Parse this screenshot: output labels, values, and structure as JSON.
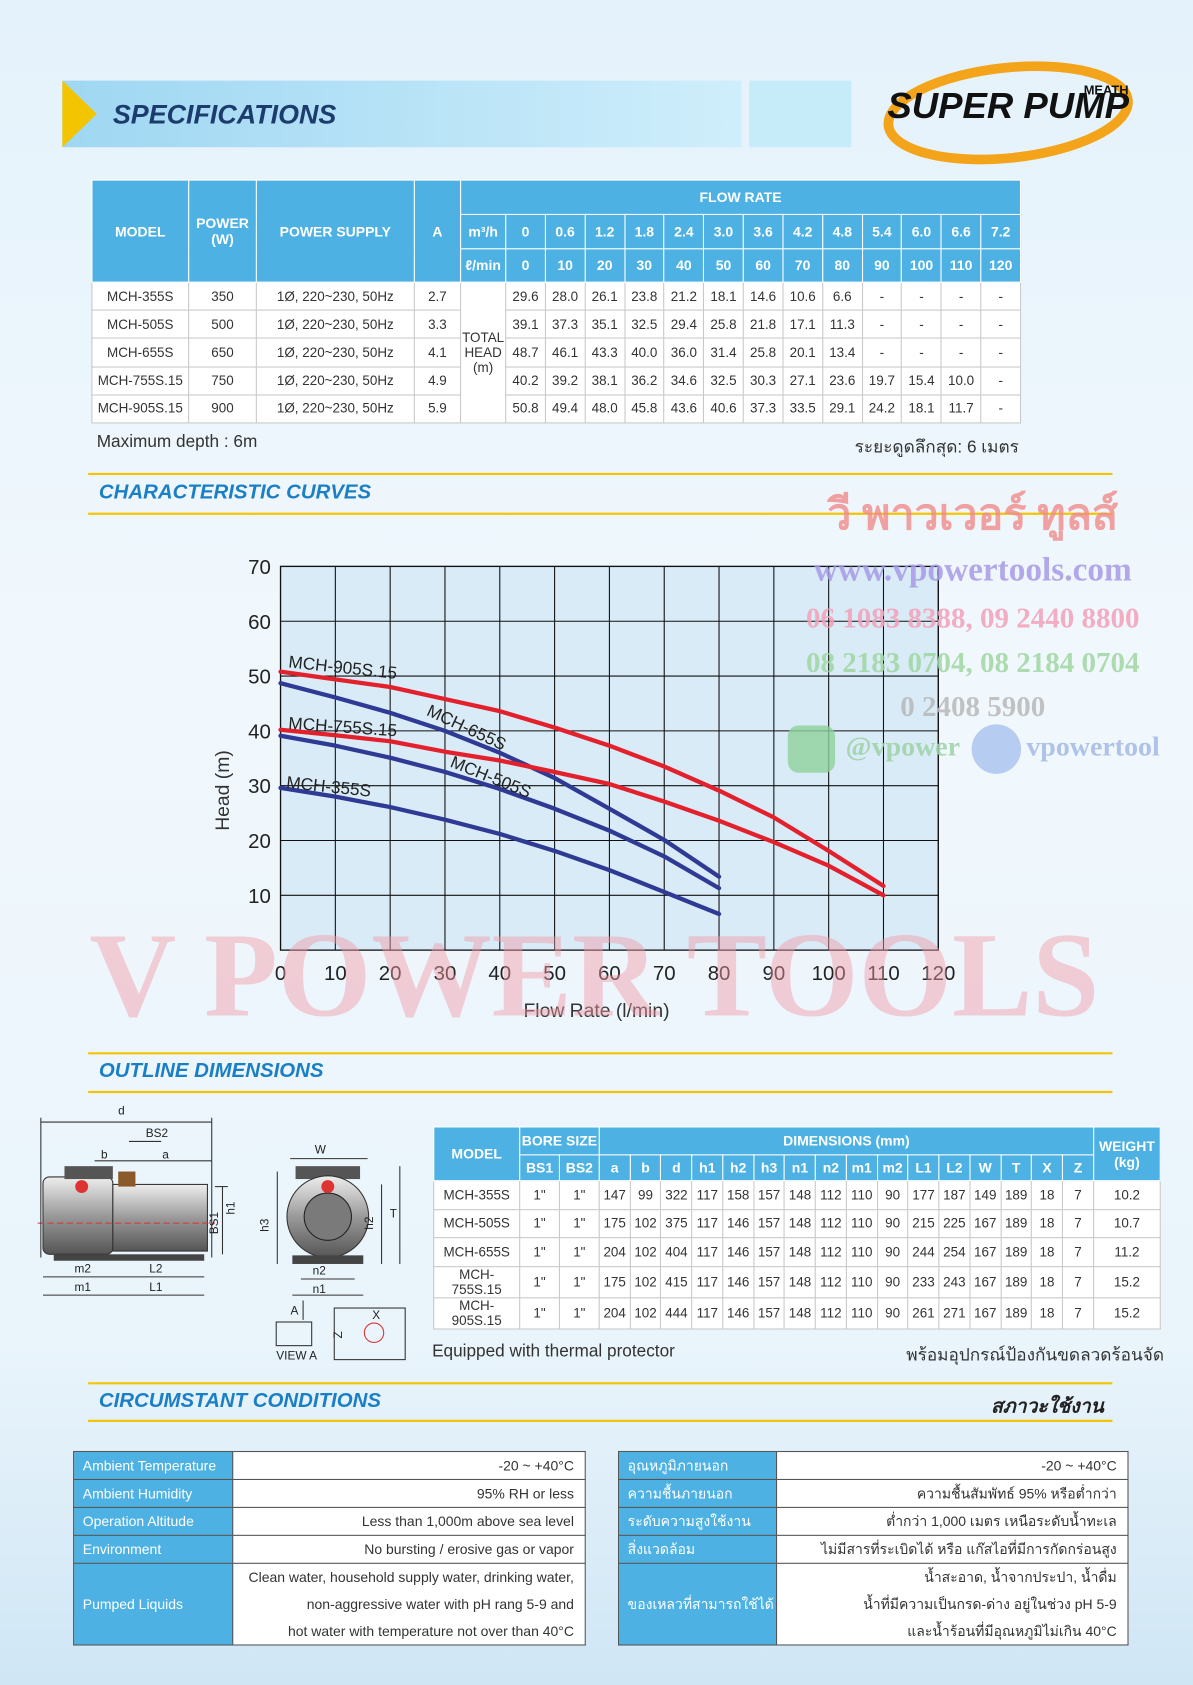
{
  "header": {
    "title": "SPECIFICATIONS",
    "logo": "SUPER PUMP",
    "logo_brand": "MEATH"
  },
  "spec_table": {
    "model": "MODEL",
    "power": [
      "POWER",
      "(W)"
    ],
    "supply": "POWER SUPPLY",
    "amp": "A",
    "flow_rate": "FLOW RATE",
    "unit_m3h": "m³/h",
    "unit_lmin": "ℓ/min",
    "total_head": [
      "TOTAL",
      "HEAD",
      "(m)"
    ],
    "flow_m3h": [
      "0",
      "0.6",
      "1.2",
      "1.8",
      "2.4",
      "3.0",
      "3.6",
      "4.2",
      "4.8",
      "5.4",
      "6.0",
      "6.6",
      "7.2"
    ],
    "flow_lmin": [
      "0",
      "10",
      "20",
      "30",
      "40",
      "50",
      "60",
      "70",
      "80",
      "90",
      "100",
      "110",
      "120"
    ],
    "rows": [
      {
        "model": "MCH-355S",
        "power": "350",
        "supply": "1Ø, 220~230, 50Hz",
        "amp": "2.7",
        "head": [
          "29.6",
          "28.0",
          "26.1",
          "23.8",
          "21.2",
          "18.1",
          "14.6",
          "10.6",
          "6.6",
          "-",
          "-",
          "-",
          "-"
        ]
      },
      {
        "model": "MCH-505S",
        "power": "500",
        "supply": "1Ø, 220~230, 50Hz",
        "amp": "3.3",
        "head": [
          "39.1",
          "37.3",
          "35.1",
          "32.5",
          "29.4",
          "25.8",
          "21.8",
          "17.1",
          "11.3",
          "-",
          "-",
          "-",
          "-"
        ]
      },
      {
        "model": "MCH-655S",
        "power": "650",
        "supply": "1Ø, 220~230, 50Hz",
        "amp": "4.1",
        "head": [
          "48.7",
          "46.1",
          "43.3",
          "40.0",
          "36.0",
          "31.4",
          "25.8",
          "20.1",
          "13.4",
          "-",
          "-",
          "-",
          "-"
        ]
      },
      {
        "model": "MCH-755S.15",
        "power": "750",
        "supply": "1Ø, 220~230, 50Hz",
        "amp": "4.9",
        "head": [
          "40.2",
          "39.2",
          "38.1",
          "36.2",
          "34.6",
          "32.5",
          "30.3",
          "27.1",
          "23.6",
          "19.7",
          "15.4",
          "10.0",
          "-"
        ]
      },
      {
        "model": "MCH-905S.15",
        "power": "900",
        "supply": "1Ø, 220~230, 50Hz",
        "amp": "5.9",
        "head": [
          "50.8",
          "49.4",
          "48.0",
          "45.8",
          "43.6",
          "40.6",
          "37.3",
          "33.5",
          "29.1",
          "24.2",
          "18.1",
          "11.7",
          "-"
        ]
      }
    ]
  },
  "spec_notes": {
    "left": "Maximum depth : 6m",
    "right": "ระยะดูดลึกสุด: 6 เมตร"
  },
  "chart_data": {
    "type": "line",
    "title": "CHARACTERISTIC CURVES",
    "x_label": "Flow Rate (l/min)",
    "y_label": "Head (m)",
    "x": [
      0,
      10,
      20,
      30,
      40,
      50,
      60,
      70,
      80,
      90,
      100,
      110,
      120
    ],
    "xlim": [
      0,
      120
    ],
    "ylim": [
      0,
      70
    ],
    "xticks": [
      0,
      10,
      20,
      30,
      40,
      50,
      60,
      70,
      80,
      90,
      100,
      110,
      120
    ],
    "yticks": [
      10,
      20,
      30,
      40,
      50,
      60,
      70
    ],
    "grid": true,
    "series": [
      {
        "name": "MCH-355S",
        "color": "#2e3a94",
        "values": [
          29.6,
          28.0,
          26.1,
          23.8,
          21.2,
          18.1,
          14.6,
          10.6,
          6.6,
          null,
          null,
          null,
          null
        ]
      },
      {
        "name": "MCH-505S",
        "color": "#2e3a94",
        "values": [
          39.1,
          37.3,
          35.1,
          32.5,
          29.4,
          25.8,
          21.8,
          17.1,
          11.3,
          null,
          null,
          null,
          null
        ]
      },
      {
        "name": "MCH-655S",
        "color": "#2e3a94",
        "values": [
          48.7,
          46.1,
          43.3,
          40.0,
          36.0,
          31.4,
          25.8,
          20.1,
          13.4,
          null,
          null,
          null,
          null
        ]
      },
      {
        "name": "MCH-755S.15",
        "color": "#e3212d",
        "values": [
          40.2,
          39.2,
          38.1,
          36.2,
          34.6,
          32.5,
          30.3,
          27.1,
          23.6,
          19.7,
          15.4,
          10.0,
          null
        ]
      },
      {
        "name": "MCH-905S.15",
        "color": "#e3212d",
        "values": [
          50.8,
          49.4,
          48.0,
          45.8,
          43.6,
          40.6,
          37.3,
          33.5,
          29.1,
          24.2,
          18.1,
          11.7,
          null
        ]
      }
    ]
  },
  "watermark": {
    "thai": "วี พาวเวอร์ ทูลส์",
    "url": "www.vpowertools.com",
    "phones": [
      "06 1083 8388, 09 2440 8800",
      "08 2183 0704, 08 2184 0704",
      "0 2408 5900"
    ],
    "line": "@vpower",
    "facebook": "vpowertool",
    "big": "V POWER TOOLS"
  },
  "outline": {
    "title": "OUTLINE DIMENSIONS",
    "labels": [
      "d",
      "BS2",
      "b",
      "a",
      "W",
      "h1",
      "BS1",
      "h3",
      "h2",
      "T",
      "m2",
      "L2",
      "m1",
      "L1",
      "n2",
      "n1",
      "A",
      "VIEW A",
      "X",
      "Z"
    ]
  },
  "dim_table": {
    "model": "MODEL",
    "bore_size": "BORE SIZE",
    "dimensions": "DIMENSIONS (mm)",
    "weight": [
      "WEIGHT",
      "(kg)"
    ],
    "columns": [
      "BS1",
      "BS2",
      "a",
      "b",
      "d",
      "h1",
      "h2",
      "h3",
      "n1",
      "n2",
      "m1",
      "m2",
      "L1",
      "L2",
      "W",
      "T",
      "X",
      "Z"
    ],
    "rows": [
      {
        "model": "MCH-355S",
        "values": [
          "1\"",
          "1\"",
          "147",
          "99",
          "322",
          "117",
          "158",
          "157",
          "148",
          "112",
          "110",
          "90",
          "177",
          "187",
          "149",
          "189",
          "18",
          "7"
        ],
        "weight": "10.2"
      },
      {
        "model": "MCH-505S",
        "values": [
          "1\"",
          "1\"",
          "175",
          "102",
          "375",
          "117",
          "146",
          "157",
          "148",
          "112",
          "110",
          "90",
          "215",
          "225",
          "167",
          "189",
          "18",
          "7"
        ],
        "weight": "10.7"
      },
      {
        "model": "MCH-655S",
        "values": [
          "1\"",
          "1\"",
          "204",
          "102",
          "404",
          "117",
          "146",
          "157",
          "148",
          "112",
          "110",
          "90",
          "244",
          "254",
          "167",
          "189",
          "18",
          "7"
        ],
        "weight": "11.2"
      },
      {
        "model": "MCH-755S.15",
        "values": [
          "1\"",
          "1\"",
          "175",
          "102",
          "415",
          "117",
          "146",
          "157",
          "148",
          "112",
          "110",
          "90",
          "233",
          "243",
          "167",
          "189",
          "18",
          "7"
        ],
        "weight": "15.2"
      },
      {
        "model": "MCH-905S.15",
        "values": [
          "1\"",
          "1\"",
          "204",
          "102",
          "444",
          "117",
          "146",
          "157",
          "148",
          "112",
          "110",
          "90",
          "261",
          "271",
          "167",
          "189",
          "18",
          "7"
        ],
        "weight": "15.2"
      }
    ]
  },
  "dim_notes": {
    "left": "Equipped with thermal protector",
    "right": "พร้อมอุปกรณ์ป้องกันขดลวดร้อนจัด"
  },
  "conditions": {
    "title": "CIRCUMSTANT CONDITIONS",
    "title_th": "สภาวะใช้งาน",
    "en": [
      {
        "label": "Ambient Temperature",
        "value": "-20 ~ +40°C"
      },
      {
        "label": "Ambient Humidity",
        "value": "95% RH or less"
      },
      {
        "label": "Operation Altitude",
        "value": "Less than 1,000m above sea level"
      },
      {
        "label": "Environment",
        "value": "No bursting / erosive gas or vapor"
      },
      {
        "label": "Pumped Liquids",
        "value": [
          "Clean water, household supply water, drinking water,",
          "non-aggressive water with pH rang 5-9 and",
          "hot water with temperature not over than 40°C"
        ]
      }
    ],
    "th": [
      {
        "label": "อุณหภูมิภายนอก",
        "value": "-20 ~ +40°C"
      },
      {
        "label": "ความชื้นภายนอก",
        "value": "ความชื้นสัมพัทธ์ 95% หรือต่ำกว่า"
      },
      {
        "label": "ระดับความสูงใช้งาน",
        "value": "ต่ำกว่า 1,000 เมตร เหนือระดับน้ำทะเล"
      },
      {
        "label": "สิ่งแวดล้อม",
        "value": "ไม่มีสารที่ระเบิดได้ หรือ แก๊สไอที่มีการกัดกร่อนสูง"
      },
      {
        "label": "ของเหลวที่สามารถใช้ได้",
        "value": [
          "น้ำสะอาด, น้ำจากประปา, น้ำดื่ม",
          "น้ำที่มีความเป็นกรด-ด่าง อยู่ในช่วง pH 5-9",
          "และน้ำร้อนที่มีอุณหภูมิไม่เกิน 40°C"
        ]
      }
    ]
  }
}
